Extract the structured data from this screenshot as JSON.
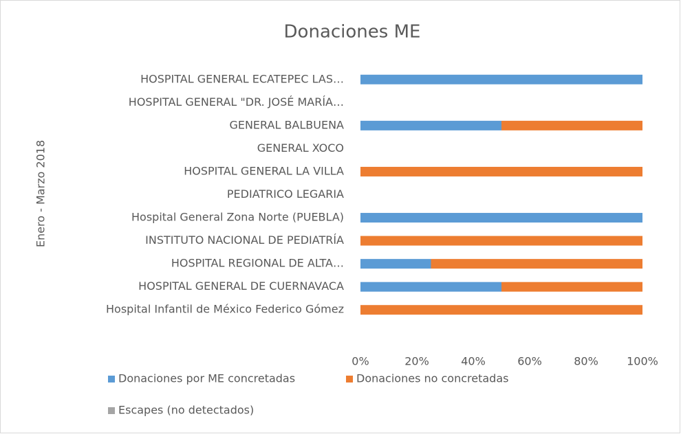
{
  "chart_data": {
    "type": "stacked-barh",
    "title": "Donaciones ME",
    "ylabel": "Enero - Marzo 2018",
    "categories": [
      "HOSPITAL GENERAL ECATEPEC LAS…",
      "HOSPITAL GENERAL \"DR. JOSÉ MARÍA…",
      "GENERAL BALBUENA",
      "GENERAL XOCO",
      "HOSPITAL GENERAL LA VILLA",
      "PEDIATRICO LEGARIA",
      "Hospital General Zona Norte (PUEBLA)",
      "INSTITUTO NACIONAL DE PEDIATRÍA",
      "HOSPITAL REGIONAL DE ALTA…",
      "HOSPITAL GENERAL DE CUERNAVACA",
      "Hospital Infantil de México Federico Gómez"
    ],
    "series": [
      {
        "name": "Donaciones por ME concretadas",
        "color": "#5b9bd5",
        "values": [
          100,
          0,
          50,
          0,
          0,
          0,
          100,
          0,
          25,
          50,
          0
        ]
      },
      {
        "name": "Donaciones no concretadas",
        "color": "#ed7d31",
        "values": [
          0,
          0,
          50,
          0,
          100,
          0,
          0,
          100,
          75,
          50,
          100
        ]
      },
      {
        "name": "Escapes (no detectados)",
        "color": "#a5a5a5",
        "values": [
          0,
          0,
          0,
          0,
          0,
          0,
          0,
          0,
          0,
          0,
          0
        ]
      }
    ],
    "xlim": [
      0,
      100
    ],
    "xticks": [
      {
        "value": 0,
        "label": "0%"
      },
      {
        "value": 20,
        "label": "20%"
      },
      {
        "value": 40,
        "label": "40%"
      },
      {
        "value": 60,
        "label": "60%"
      },
      {
        "value": 80,
        "label": "80%"
      },
      {
        "value": 100,
        "label": "100%"
      }
    ],
    "legend": "bottom"
  }
}
